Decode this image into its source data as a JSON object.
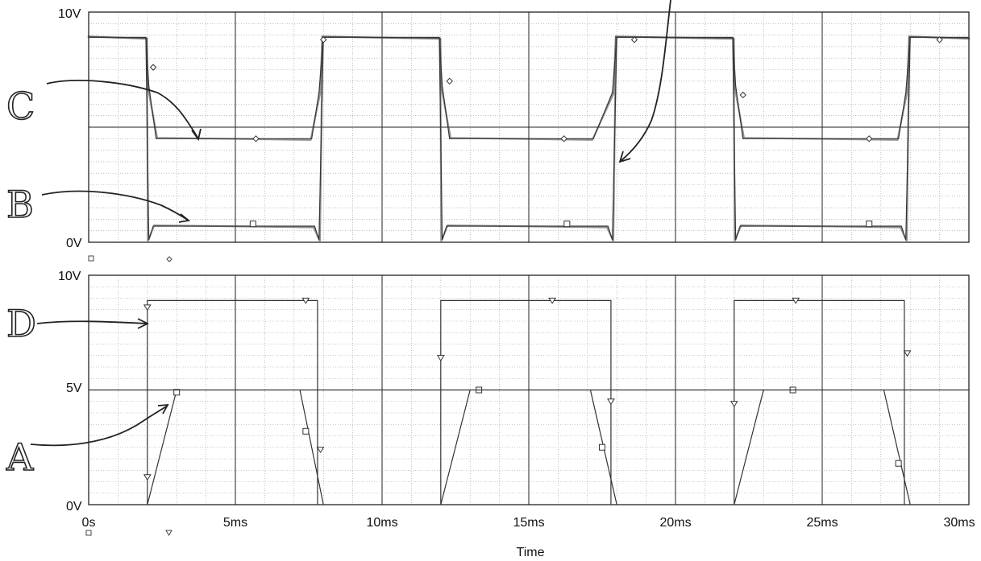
{
  "colors": {
    "trace": "#333333",
    "grid_major": "#222222",
    "grid_minor": "#9a9a9a",
    "ink": "#3a3a3a"
  },
  "chart_data": [
    {
      "type": "line",
      "panel": "top",
      "y_ticks": [
        "10V",
        "0V"
      ],
      "ylim": [
        0,
        10
      ],
      "xlim": [
        0,
        30
      ],
      "grid": true,
      "annotations": [
        "C",
        "B"
      ],
      "series": [
        {
          "marker": "diamond",
          "x": [
            0,
            1.95,
            2.05,
            2.3,
            7.6,
            7.85,
            8.0,
            11.95,
            12.05,
            12.3,
            17.2,
            17.85,
            18.0,
            21.95,
            22.05,
            22.3,
            27.6,
            27.85,
            28.0,
            30
          ],
          "y": [
            8.9,
            8.9,
            6.8,
            4.5,
            4.5,
            6.5,
            8.9,
            8.9,
            6.8,
            4.5,
            4.5,
            6.5,
            8.9,
            8.9,
            6.8,
            4.5,
            4.5,
            6.5,
            8.9,
            8.9
          ]
        },
        {
          "marker": "square",
          "x": [
            0,
            1.95,
            2.05,
            2.2,
            7.7,
            7.85,
            8.0,
            11.95,
            12.05,
            12.2,
            17.7,
            17.85,
            18.0,
            21.95,
            22.05,
            22.2,
            27.7,
            27.85,
            28.0,
            30
          ],
          "y": [
            8.9,
            8.9,
            0.1,
            0.7,
            0.7,
            0.1,
            8.9,
            8.9,
            0.1,
            0.7,
            0.7,
            0.1,
            8.9,
            8.9,
            0.1,
            0.7,
            0.7,
            0.1,
            8.9,
            8.9
          ]
        }
      ],
      "marker_points": {
        "diamond": {
          "x": [
            2.2,
            5.7,
            8.0,
            12.3,
            16.2,
            18.6,
            22.3,
            26.6,
            29.0
          ],
          "y": [
            7.6,
            4.5,
            8.8,
            7.0,
            4.5,
            8.8,
            6.4,
            4.5,
            8.8
          ]
        },
        "square": {
          "x": [
            5.6,
            16.3,
            26.6
          ],
          "y": [
            0.8,
            0.8,
            0.8
          ]
        }
      }
    },
    {
      "type": "line",
      "panel": "bottom",
      "y_ticks": [
        "10V",
        "5V",
        "0V"
      ],
      "ylim": [
        0,
        10
      ],
      "xlim": [
        0,
        30
      ],
      "x_ticks": [
        "0s",
        "5ms",
        "10ms",
        "15ms",
        "20ms",
        "25ms",
        "30ms"
      ],
      "xlabel": "Time",
      "grid": true,
      "annotations": [
        "D",
        "A"
      ],
      "series": [
        {
          "marker": "triangle-down",
          "segments": [
            {
              "x": [
                2.0,
                2.0,
                7.8,
                7.8
              ],
              "y": [
                0,
                8.9,
                8.9,
                0
              ]
            },
            {
              "x": [
                12.0,
                12.0,
                17.8,
                17.8
              ],
              "y": [
                0,
                8.9,
                8.9,
                0
              ]
            },
            {
              "x": [
                22.0,
                22.0,
                27.8,
                27.8
              ],
              "y": [
                0,
                8.9,
                8.9,
                0
              ]
            }
          ],
          "points_x": [
            2.0,
            2.0,
            7.4,
            7.9,
            12.0,
            15.8,
            17.8,
            22.0,
            24.1,
            27.9
          ],
          "points_y": [
            1.2,
            8.6,
            8.9,
            2.4,
            6.4,
            8.9,
            4.5,
            4.4,
            8.9,
            6.6
          ]
        },
        {
          "marker": "square",
          "segments": [
            {
              "x": [
                2.0,
                3.0
              ],
              "y": [
                0,
                5
              ]
            },
            {
              "x": [
                7.2,
                8.0
              ],
              "y": [
                5,
                0
              ]
            },
            {
              "x": [
                12.0,
                13.0
              ],
              "y": [
                0,
                5
              ]
            },
            {
              "x": [
                17.1,
                18.0
              ],
              "y": [
                5,
                0
              ]
            },
            {
              "x": [
                22.0,
                23.0
              ],
              "y": [
                0,
                5
              ]
            },
            {
              "x": [
                27.1,
                28.0
              ],
              "y": [
                5,
                0
              ]
            }
          ],
          "points_x": [
            3.0,
            7.4,
            13.3,
            17.5,
            24.0,
            27.6
          ],
          "points_y": [
            4.9,
            3.2,
            5.0,
            2.5,
            5.0,
            1.8
          ]
        },
        {
          "marker": "none",
          "x": [
            0,
            30
          ],
          "y": [
            5,
            5
          ]
        }
      ]
    }
  ]
}
